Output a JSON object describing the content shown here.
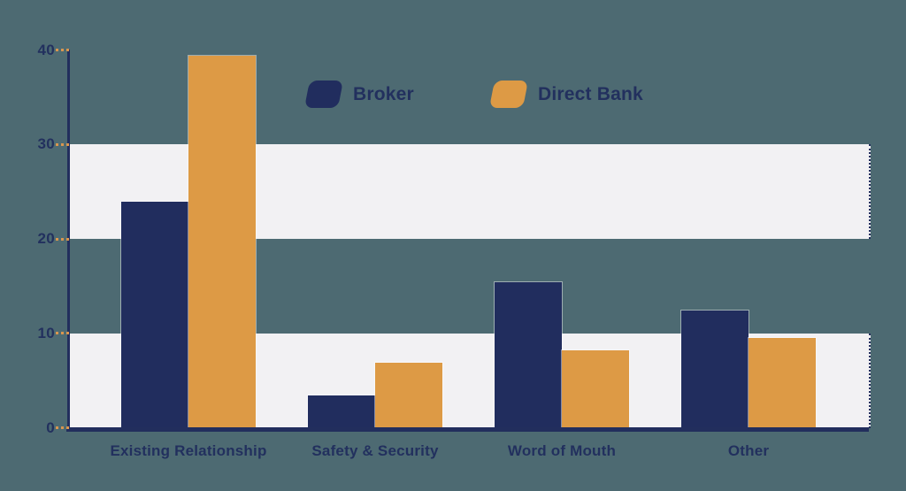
{
  "chart_data": {
    "type": "bar",
    "categories": [
      "Existing Relationship",
      "Safety & Security",
      "Word of Mouth",
      "Other"
    ],
    "series": [
      {
        "name": "Broker",
        "color": "#212d5e",
        "values": [
          23.9,
          3.4,
          15.4,
          12.4
        ]
      },
      {
        "name": "Direct Bank",
        "color": "#dd9a45",
        "values": [
          39.4,
          6.9,
          8.2,
          9.5
        ]
      }
    ],
    "y_ticks": [
      0,
      10,
      20,
      30,
      40
    ],
    "ylim": [
      0,
      40
    ],
    "xlabel": "",
    "ylabel": "",
    "grid": "horizontal-bands",
    "grid_bands": [
      [
        20,
        30
      ],
      [
        0,
        10
      ]
    ],
    "legend_position": "top-center"
  },
  "colors": {
    "background": "#4d6a72",
    "band": "#f2f1f3",
    "axis": "#222e5d",
    "tick": "#d9964f",
    "text": "#22305e"
  }
}
